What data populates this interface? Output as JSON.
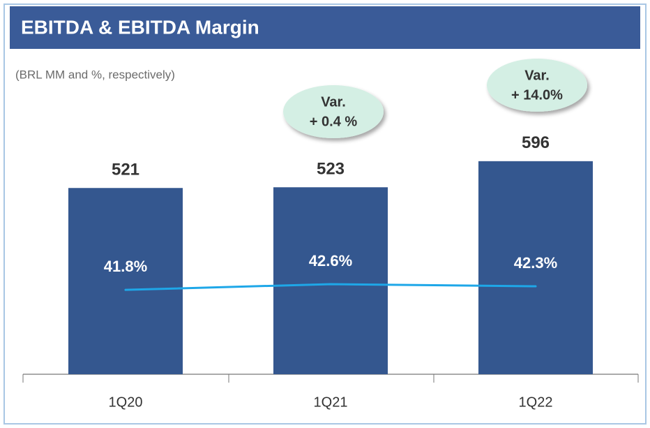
{
  "chart_data": {
    "type": "bar",
    "title": "EBITDA & EBITDA Margin",
    "subtitle": "(BRL MM and %, respectively)",
    "categories": [
      "1Q20",
      "1Q21",
      "1Q22"
    ],
    "series": [
      {
        "name": "EBITDA",
        "type": "bar",
        "color": "#34578f",
        "values": [
          521,
          523,
          596
        ]
      },
      {
        "name": "EBITDA Margin",
        "type": "line",
        "axis": "y2",
        "color": "#1ea7e8",
        "values": [
          41.8,
          42.6,
          42.3
        ],
        "value_labels": [
          "41.8%",
          "42.6%",
          "42.3%"
        ]
      }
    ],
    "ylim": [
      0,
      1000
    ],
    "y2lim": [
      30,
      80
    ],
    "annotations": [
      {
        "text": [
          "Var.",
          "+ 0.4 %"
        ]
      },
      {
        "text": [
          "Var.",
          "+ 14.0%"
        ]
      }
    ]
  }
}
